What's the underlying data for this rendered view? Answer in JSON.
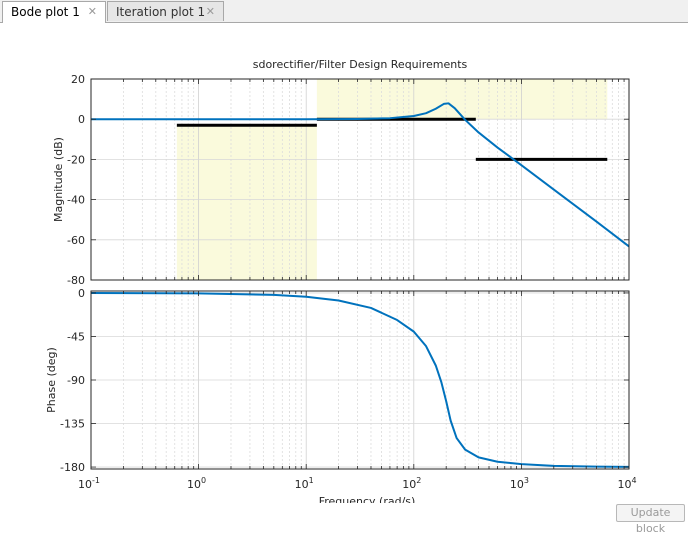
{
  "tabs": [
    {
      "label": "Bode plot 1",
      "active": true,
      "close": "✕"
    },
    {
      "label": "Iteration plot 1",
      "active": false,
      "close": "✕"
    }
  ],
  "update_button": "Update block",
  "chart_data": [
    {
      "type": "line",
      "panel": "magnitude",
      "title": "sdorectifier/Filter Design Requirements",
      "ylabel": "Magnitude (dB)",
      "xscale": "log",
      "xlim": [
        0.1,
        10000
      ],
      "ylim": [
        -80,
        20
      ],
      "yticks": [
        "20",
        "0",
        "-20",
        "-40",
        "-60",
        "-80"
      ],
      "ytick_values": [
        20,
        0,
        -20,
        -40,
        -60,
        -80
      ],
      "grid": true,
      "color": "#0072bd",
      "series": [
        {
          "x": [
            0.1,
            1,
            10,
            30,
            60,
            100,
            130,
            160,
            190,
            210,
            240,
            300,
            400,
            600,
            1000,
            2000,
            5000,
            10000
          ],
          "y": [
            0,
            0,
            -0.02,
            0.1,
            0.5,
            1.6,
            3.0,
            5.2,
            7.6,
            7.9,
            5.5,
            -0.3,
            -6.6,
            -14.1,
            -22.9,
            -35.0,
            -51.0,
            -63.3
          ]
        }
      ],
      "requirement_regions": [
        {
          "x": [
            0.628,
            12.57
          ],
          "y": [
            -80,
            -3
          ]
        },
        {
          "x": [
            12.57,
            6283
          ],
          "y": [
            0,
            20
          ]
        }
      ],
      "requirement_lines": [
        {
          "x": [
            0.628,
            12.57
          ],
          "y": -3
        },
        {
          "x": [
            12.57,
            377
          ],
          "y": 0
        },
        {
          "x": [
            377,
            6283
          ],
          "y": -20
        }
      ],
      "region_color": "#fafadc",
      "line_color": "#000000"
    },
    {
      "type": "line",
      "panel": "phase",
      "ylabel": "Phase (deg)",
      "xlabel": "Frequency  (rad/s)",
      "xscale": "log",
      "xlim": [
        0.1,
        10000
      ],
      "ylim": [
        -182,
        2
      ],
      "yticks": [
        "0",
        "-45",
        "-90",
        "-135",
        "-180"
      ],
      "ytick_values": [
        0,
        -45,
        -90,
        -135,
        -180
      ],
      "xtick_values": [
        0.1,
        1,
        10,
        100,
        1000,
        10000
      ],
      "xticks": [
        {
          "base": "10",
          "exp": "-1"
        },
        {
          "base": "10",
          "exp": "0"
        },
        {
          "base": "10",
          "exp": "1"
        },
        {
          "base": "10",
          "exp": "2"
        },
        {
          "base": "10",
          "exp": "3"
        },
        {
          "base": "10",
          "exp": "4"
        }
      ],
      "grid": true,
      "color": "#0072bd",
      "series": [
        {
          "x": [
            0.1,
            1,
            5,
            10,
            20,
            40,
            70,
            100,
            130,
            160,
            180,
            200,
            220,
            250,
            300,
            400,
            600,
            1000,
            2000,
            5000,
            10000
          ],
          "y": [
            -0.05,
            -0.4,
            -2,
            -3.9,
            -7.8,
            -15.5,
            -28,
            -40,
            -55,
            -75,
            -92,
            -112,
            -132,
            -150,
            -162,
            -170,
            -174.5,
            -177,
            -178.8,
            -179.5,
            -179.8
          ]
        }
      ]
    }
  ]
}
